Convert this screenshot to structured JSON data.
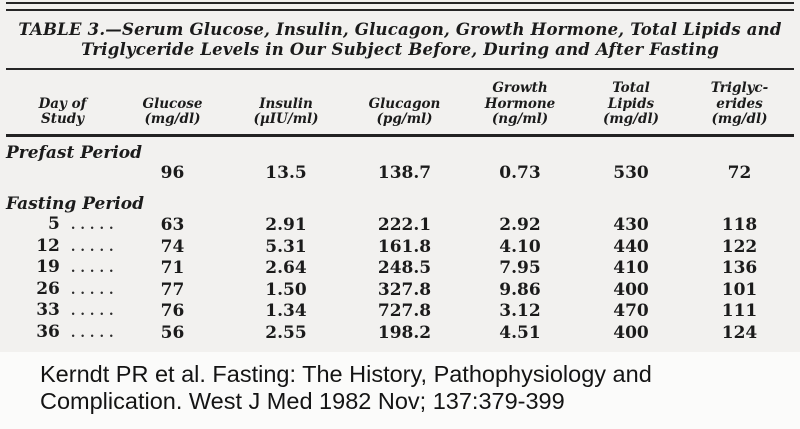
{
  "table": {
    "title": "TABLE 3.—Serum Glucose, Insulin, Glucagon, Growth Hormone, Total Lipids and\nTriglyceride Levels in Our Subject Before, During and After Fasting",
    "columns": [
      {
        "header": "Day of\nStudy"
      },
      {
        "header": "Glucose\n(mg/dl)"
      },
      {
        "header": "Insulin\n(µIU/ml)"
      },
      {
        "header": "Glucagon\n(pg/ml)"
      },
      {
        "header": "Growth\nHormone\n(ng/ml)"
      },
      {
        "header": "Total\nLipids\n(mg/dl)"
      },
      {
        "header": "Triglyc-\nerides\n(mg/dl)"
      }
    ],
    "sections": [
      {
        "label": "Prefast Period",
        "rows": [
          {
            "day": "",
            "dots": "",
            "glucose": "96",
            "insulin": "13.5",
            "glucagon": "138.7",
            "growth_hormone": "0.73",
            "total_lipids": "530",
            "triglycerides": "72"
          }
        ]
      },
      {
        "label": "Fasting Period",
        "rows": [
          {
            "day": "5",
            "dots": "......",
            "glucose": "63",
            "insulin": "2.91",
            "glucagon": "222.1",
            "growth_hormone": "2.92",
            "total_lipids": "430",
            "triglycerides": "118"
          },
          {
            "day": "12",
            "dots": "......",
            "glucose": "74",
            "insulin": "5.31",
            "glucagon": "161.8",
            "growth_hormone": "4.10",
            "total_lipids": "440",
            "triglycerides": "122"
          },
          {
            "day": "19",
            "dots": "......",
            "glucose": "71",
            "insulin": "2.64",
            "glucagon": "248.5",
            "growth_hormone": "7.95",
            "total_lipids": "410",
            "triglycerides": "136"
          },
          {
            "day": "26",
            "dots": "......",
            "glucose": "77",
            "insulin": "1.50",
            "glucagon": "327.8",
            "growth_hormone": "9.86",
            "total_lipids": "400",
            "triglycerides": "101"
          },
          {
            "day": "33",
            "dots": "......",
            "glucose": "76",
            "insulin": "1.34",
            "glucagon": "727.8",
            "growth_hormone": "3.12",
            "total_lipids": "470",
            "triglycerides": "111"
          },
          {
            "day": "36",
            "dots": "......",
            "glucose": "56",
            "insulin": "2.55",
            "glucagon": "198.2",
            "growth_hormone": "4.51",
            "total_lipids": "400",
            "triglycerides": "124"
          }
        ]
      }
    ]
  },
  "citation": {
    "text": "Kerndt PR et al. Fasting: The History, Pathophysiology and\nComplication. West J Med 1982 Nov; 137:379-399"
  },
  "colors": {
    "scan_background": "#f2f1ef",
    "paper_background": "#fbfbfa",
    "rule": "#262626",
    "text": "#1b1b1b"
  }
}
